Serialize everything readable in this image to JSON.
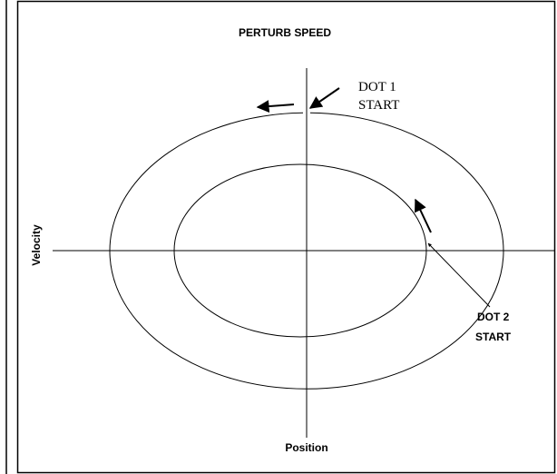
{
  "title": "PERTURB SPEED",
  "axes": {
    "x_label": "Position",
    "y_label": "Velocity"
  },
  "annotations": {
    "dot1": [
      "DOT 1",
      "START"
    ],
    "dot2": [
      "DOT 2",
      "START"
    ]
  }
}
